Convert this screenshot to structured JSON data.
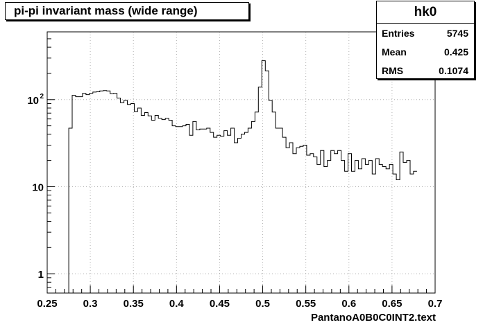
{
  "footer_label": "PantanoA0B0C0INT2.text",
  "stats": {
    "name": "hk0",
    "rows": [
      {
        "label": "Entries",
        "value": "5745"
      },
      {
        "label": "Mean",
        "value": "0.425"
      },
      {
        "label": "RMS",
        "value": "0.1074"
      }
    ]
  },
  "chart_data": {
    "type": "histogram",
    "title": "pi-pi invariant mass (wide range)",
    "xlabel": "",
    "ylabel": "",
    "xlim": [
      0.25,
      0.7
    ],
    "ylim": [
      0.6,
      600
    ],
    "yscale": "log",
    "grid": true,
    "xticks": [
      "0.25",
      "0.3",
      "0.35",
      "0.4",
      "0.45",
      "0.5",
      "0.55",
      "0.6",
      "0.65",
      "0.7"
    ],
    "yticks": [
      {
        "value": 1,
        "label": "1"
      },
      {
        "value": 10,
        "label": "10"
      },
      {
        "value": 100,
        "label": "10",
        "exponent": "2"
      }
    ],
    "bin_start": 0.275,
    "bin_width": 0.004,
    "values": [
      47,
      112,
      108,
      108,
      118,
      114,
      118,
      122,
      123,
      126,
      127,
      126,
      117,
      118,
      104,
      92,
      98,
      88,
      90,
      73,
      80,
      66,
      71,
      65,
      58,
      66,
      61,
      59,
      61,
      58,
      50,
      49,
      49,
      50,
      52,
      39,
      56,
      45,
      46,
      46,
      47,
      42,
      37,
      39,
      38,
      44,
      39,
      47,
      32,
      36,
      40,
      42,
      47,
      56,
      72,
      139,
      280,
      214,
      98,
      72,
      47,
      47,
      37,
      28,
      32,
      24,
      28,
      29,
      30,
      23,
      24,
      22,
      18,
      26,
      17,
      20,
      26,
      24,
      26,
      20,
      15,
      24,
      15,
      20,
      16,
      21,
      18,
      20,
      14,
      21,
      18,
      17,
      16,
      18,
      14,
      12,
      25,
      19,
      20,
      14,
      15
    ]
  }
}
